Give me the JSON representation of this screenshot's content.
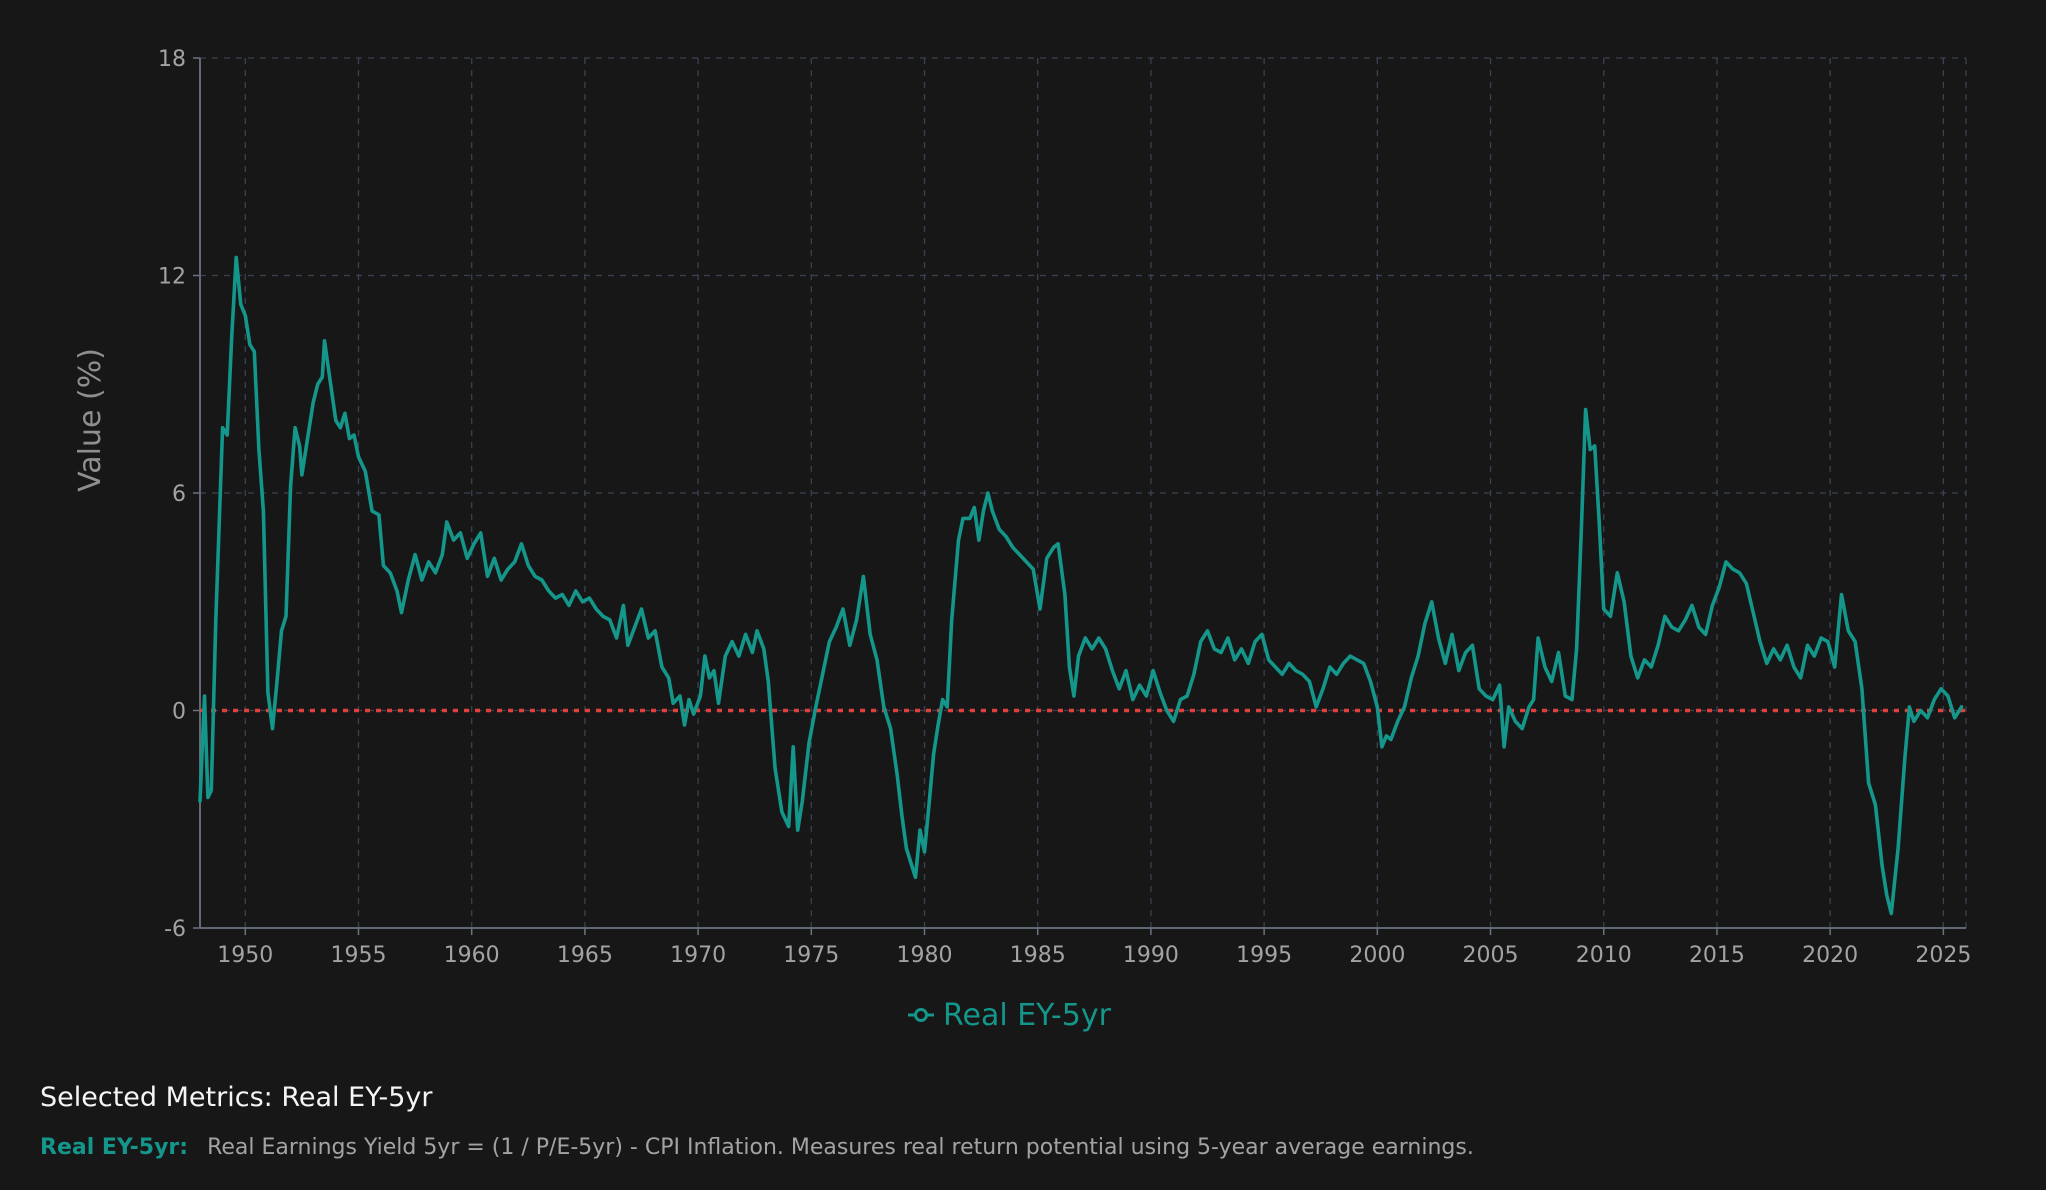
{
  "colors": {
    "background": "#171717",
    "series": "#14968a",
    "reference_line": "#e0403a",
    "grid": "#3a4150",
    "axis": "#6b7280",
    "tick_text": "#a3a3a3"
  },
  "chart_data": {
    "type": "line",
    "title": "",
    "xlabel": "",
    "ylabel": "Value (%)",
    "xlim": [
      1948,
      2026
    ],
    "ylim": [
      -6,
      18
    ],
    "x_ticks": [
      1950,
      1955,
      1960,
      1965,
      1970,
      1975,
      1980,
      1985,
      1990,
      1995,
      2000,
      2005,
      2010,
      2015,
      2020,
      2025
    ],
    "y_ticks": [
      -6,
      0,
      6,
      12,
      18
    ],
    "grid": true,
    "grid_style": "dashed",
    "legend": {
      "placement": "bottom-center",
      "entries": [
        "Real EY-5yr"
      ]
    },
    "reference_lines": [
      {
        "axis": "y",
        "value": 0,
        "style": "dotted",
        "color": "#e0403a"
      }
    ],
    "series": [
      {
        "name": "Real EY-5yr",
        "color": "#14968a",
        "points": [
          [
            1948.0,
            -2.5
          ],
          [
            1948.2,
            0.4
          ],
          [
            1948.35,
            -2.4
          ],
          [
            1948.5,
            -2.2
          ],
          [
            1948.7,
            2.5
          ],
          [
            1949.0,
            7.8
          ],
          [
            1949.2,
            7.6
          ],
          [
            1949.4,
            10.3
          ],
          [
            1949.6,
            12.5
          ],
          [
            1949.8,
            11.2
          ],
          [
            1950.0,
            10.9
          ],
          [
            1950.2,
            10.1
          ],
          [
            1950.4,
            9.9
          ],
          [
            1950.6,
            7.2
          ],
          [
            1950.8,
            5.5
          ],
          [
            1951.0,
            0.5
          ],
          [
            1951.2,
            -0.5
          ],
          [
            1951.4,
            0.8
          ],
          [
            1951.6,
            2.2
          ],
          [
            1951.8,
            2.6
          ],
          [
            1952.0,
            6.2
          ],
          [
            1952.2,
            7.8
          ],
          [
            1952.4,
            7.3
          ],
          [
            1952.5,
            6.5
          ],
          [
            1952.7,
            7.3
          ],
          [
            1953.0,
            8.5
          ],
          [
            1953.2,
            9.0
          ],
          [
            1953.4,
            9.2
          ],
          [
            1953.5,
            10.2
          ],
          [
            1953.7,
            9.3
          ],
          [
            1954.0,
            8.0
          ],
          [
            1954.2,
            7.8
          ],
          [
            1954.4,
            8.2
          ],
          [
            1954.6,
            7.5
          ],
          [
            1954.8,
            7.6
          ],
          [
            1955.0,
            7.0
          ],
          [
            1955.3,
            6.6
          ],
          [
            1955.6,
            5.5
          ],
          [
            1955.9,
            5.4
          ],
          [
            1956.1,
            4.0
          ],
          [
            1956.4,
            3.8
          ],
          [
            1956.7,
            3.3
          ],
          [
            1956.9,
            2.7
          ],
          [
            1957.2,
            3.6
          ],
          [
            1957.5,
            4.3
          ],
          [
            1957.8,
            3.6
          ],
          [
            1958.1,
            4.1
          ],
          [
            1958.4,
            3.8
          ],
          [
            1958.7,
            4.3
          ],
          [
            1958.9,
            5.2
          ],
          [
            1959.2,
            4.7
          ],
          [
            1959.5,
            4.9
          ],
          [
            1959.8,
            4.2
          ],
          [
            1960.1,
            4.6
          ],
          [
            1960.4,
            4.9
          ],
          [
            1960.7,
            3.7
          ],
          [
            1961.0,
            4.2
          ],
          [
            1961.3,
            3.6
          ],
          [
            1961.6,
            3.9
          ],
          [
            1961.9,
            4.1
          ],
          [
            1962.2,
            4.6
          ],
          [
            1962.5,
            4.0
          ],
          [
            1962.8,
            3.7
          ],
          [
            1963.1,
            3.6
          ],
          [
            1963.4,
            3.3
          ],
          [
            1963.7,
            3.1
          ],
          [
            1964.0,
            3.2
          ],
          [
            1964.3,
            2.9
          ],
          [
            1964.6,
            3.3
          ],
          [
            1964.9,
            3.0
          ],
          [
            1965.2,
            3.1
          ],
          [
            1965.5,
            2.8
          ],
          [
            1965.8,
            2.6
          ],
          [
            1966.1,
            2.5
          ],
          [
            1966.4,
            2.0
          ],
          [
            1966.7,
            2.9
          ],
          [
            1966.9,
            1.8
          ],
          [
            1967.2,
            2.3
          ],
          [
            1967.5,
            2.8
          ],
          [
            1967.8,
            2.0
          ],
          [
            1968.1,
            2.2
          ],
          [
            1968.4,
            1.2
          ],
          [
            1968.7,
            0.9
          ],
          [
            1968.9,
            0.2
          ],
          [
            1969.2,
            0.4
          ],
          [
            1969.4,
            -0.4
          ],
          [
            1969.6,
            0.3
          ],
          [
            1969.8,
            -0.1
          ],
          [
            1970.1,
            0.4
          ],
          [
            1970.3,
            1.5
          ],
          [
            1970.5,
            0.9
          ],
          [
            1970.7,
            1.1
          ],
          [
            1970.9,
            0.2
          ],
          [
            1971.2,
            1.5
          ],
          [
            1971.5,
            1.9
          ],
          [
            1971.8,
            1.5
          ],
          [
            1972.1,
            2.1
          ],
          [
            1972.4,
            1.6
          ],
          [
            1972.6,
            2.2
          ],
          [
            1972.9,
            1.7
          ],
          [
            1973.1,
            0.8
          ],
          [
            1973.4,
            -1.6
          ],
          [
            1973.7,
            -2.8
          ],
          [
            1974.0,
            -3.2
          ],
          [
            1974.2,
            -1.0
          ],
          [
            1974.4,
            -3.3
          ],
          [
            1974.6,
            -2.5
          ],
          [
            1974.9,
            -0.9
          ],
          [
            1975.2,
            0.1
          ],
          [
            1975.5,
            1.0
          ],
          [
            1975.8,
            1.9
          ],
          [
            1976.1,
            2.3
          ],
          [
            1976.4,
            2.8
          ],
          [
            1976.7,
            1.8
          ],
          [
            1977.0,
            2.5
          ],
          [
            1977.3,
            3.7
          ],
          [
            1977.6,
            2.1
          ],
          [
            1977.9,
            1.4
          ],
          [
            1978.2,
            0.1
          ],
          [
            1978.5,
            -0.5
          ],
          [
            1978.8,
            -1.8
          ],
          [
            1979.0,
            -2.9
          ],
          [
            1979.2,
            -3.8
          ],
          [
            1979.4,
            -4.2
          ],
          [
            1979.6,
            -4.6
          ],
          [
            1979.8,
            -3.3
          ],
          [
            1980.0,
            -3.9
          ],
          [
            1980.2,
            -2.6
          ],
          [
            1980.4,
            -1.2
          ],
          [
            1980.6,
            -0.4
          ],
          [
            1980.8,
            0.3
          ],
          [
            1981.0,
            0.1
          ],
          [
            1981.2,
            2.5
          ],
          [
            1981.5,
            4.7
          ],
          [
            1981.7,
            5.3
          ],
          [
            1982.0,
            5.3
          ],
          [
            1982.2,
            5.6
          ],
          [
            1982.4,
            4.7
          ],
          [
            1982.6,
            5.5
          ],
          [
            1982.8,
            6.0
          ],
          [
            1983.0,
            5.5
          ],
          [
            1983.3,
            5.0
          ],
          [
            1983.6,
            4.8
          ],
          [
            1983.9,
            4.5
          ],
          [
            1984.2,
            4.3
          ],
          [
            1984.5,
            4.1
          ],
          [
            1984.8,
            3.9
          ],
          [
            1985.1,
            2.8
          ],
          [
            1985.4,
            4.2
          ],
          [
            1985.7,
            4.5
          ],
          [
            1985.9,
            4.6
          ],
          [
            1986.2,
            3.2
          ],
          [
            1986.4,
            1.2
          ],
          [
            1986.6,
            0.4
          ],
          [
            1986.8,
            1.5
          ],
          [
            1987.1,
            2.0
          ],
          [
            1987.4,
            1.7
          ],
          [
            1987.7,
            2.0
          ],
          [
            1988.0,
            1.7
          ],
          [
            1988.3,
            1.1
          ],
          [
            1988.6,
            0.6
          ],
          [
            1988.9,
            1.1
          ],
          [
            1989.2,
            0.3
          ],
          [
            1989.5,
            0.7
          ],
          [
            1989.8,
            0.4
          ],
          [
            1990.1,
            1.1
          ],
          [
            1990.4,
            0.5
          ],
          [
            1990.7,
            0.0
          ],
          [
            1991.0,
            -0.3
          ],
          [
            1991.3,
            0.3
          ],
          [
            1991.6,
            0.4
          ],
          [
            1991.9,
            1.0
          ],
          [
            1992.2,
            1.9
          ],
          [
            1992.5,
            2.2
          ],
          [
            1992.8,
            1.7
          ],
          [
            1993.1,
            1.6
          ],
          [
            1993.4,
            2.0
          ],
          [
            1993.7,
            1.4
          ],
          [
            1994.0,
            1.7
          ],
          [
            1994.3,
            1.3
          ],
          [
            1994.6,
            1.9
          ],
          [
            1994.9,
            2.1
          ],
          [
            1995.2,
            1.4
          ],
          [
            1995.5,
            1.2
          ],
          [
            1995.8,
            1.0
          ],
          [
            1996.1,
            1.3
          ],
          [
            1996.4,
            1.1
          ],
          [
            1996.7,
            1.0
          ],
          [
            1997.0,
            0.8
          ],
          [
            1997.3,
            0.1
          ],
          [
            1997.6,
            0.6
          ],
          [
            1997.9,
            1.2
          ],
          [
            1998.2,
            1.0
          ],
          [
            1998.5,
            1.3
          ],
          [
            1998.8,
            1.5
          ],
          [
            1999.1,
            1.4
          ],
          [
            1999.4,
            1.3
          ],
          [
            1999.7,
            0.8
          ],
          [
            2000.0,
            0.1
          ],
          [
            2000.2,
            -1.0
          ],
          [
            2000.4,
            -0.7
          ],
          [
            2000.6,
            -0.8
          ],
          [
            2000.9,
            -0.3
          ],
          [
            2001.2,
            0.1
          ],
          [
            2001.5,
            0.9
          ],
          [
            2001.8,
            1.5
          ],
          [
            2002.1,
            2.4
          ],
          [
            2002.4,
            3.0
          ],
          [
            2002.7,
            2.0
          ],
          [
            2003.0,
            1.3
          ],
          [
            2003.3,
            2.1
          ],
          [
            2003.6,
            1.1
          ],
          [
            2003.9,
            1.6
          ],
          [
            2004.2,
            1.8
          ],
          [
            2004.5,
            0.6
          ],
          [
            2004.8,
            0.4
          ],
          [
            2005.1,
            0.3
          ],
          [
            2005.4,
            0.7
          ],
          [
            2005.6,
            -1.0
          ],
          [
            2005.8,
            0.1
          ],
          [
            2006.1,
            -0.3
          ],
          [
            2006.4,
            -0.5
          ],
          [
            2006.7,
            0.1
          ],
          [
            2006.9,
            0.3
          ],
          [
            2007.1,
            2.0
          ],
          [
            2007.4,
            1.2
          ],
          [
            2007.7,
            0.8
          ],
          [
            2008.0,
            1.6
          ],
          [
            2008.3,
            0.4
          ],
          [
            2008.6,
            0.3
          ],
          [
            2008.8,
            1.7
          ],
          [
            2009.0,
            4.8
          ],
          [
            2009.2,
            8.3
          ],
          [
            2009.4,
            7.2
          ],
          [
            2009.6,
            7.3
          ],
          [
            2009.8,
            5.2
          ],
          [
            2010.0,
            2.8
          ],
          [
            2010.3,
            2.6
          ],
          [
            2010.6,
            3.8
          ],
          [
            2010.9,
            3.0
          ],
          [
            2011.2,
            1.5
          ],
          [
            2011.5,
            0.9
          ],
          [
            2011.8,
            1.4
          ],
          [
            2012.1,
            1.2
          ],
          [
            2012.4,
            1.8
          ],
          [
            2012.7,
            2.6
          ],
          [
            2013.0,
            2.3
          ],
          [
            2013.3,
            2.2
          ],
          [
            2013.6,
            2.5
          ],
          [
            2013.9,
            2.9
          ],
          [
            2014.2,
            2.3
          ],
          [
            2014.5,
            2.1
          ],
          [
            2014.8,
            2.9
          ],
          [
            2015.1,
            3.4
          ],
          [
            2015.4,
            4.1
          ],
          [
            2015.7,
            3.9
          ],
          [
            2016.0,
            3.8
          ],
          [
            2016.3,
            3.5
          ],
          [
            2016.6,
            2.7
          ],
          [
            2016.9,
            1.9
          ],
          [
            2017.2,
            1.3
          ],
          [
            2017.5,
            1.7
          ],
          [
            2017.8,
            1.4
          ],
          [
            2018.1,
            1.8
          ],
          [
            2018.4,
            1.2
          ],
          [
            2018.7,
            0.9
          ],
          [
            2019.0,
            1.8
          ],
          [
            2019.3,
            1.5
          ],
          [
            2019.6,
            2.0
          ],
          [
            2019.9,
            1.9
          ],
          [
            2020.2,
            1.2
          ],
          [
            2020.5,
            3.2
          ],
          [
            2020.8,
            2.2
          ],
          [
            2021.1,
            1.9
          ],
          [
            2021.4,
            0.6
          ],
          [
            2021.7,
            -2.0
          ],
          [
            2022.0,
            -2.6
          ],
          [
            2022.3,
            -4.3
          ],
          [
            2022.5,
            -5.1
          ],
          [
            2022.7,
            -5.6
          ],
          [
            2023.0,
            -3.8
          ],
          [
            2023.3,
            -1.3
          ],
          [
            2023.5,
            0.1
          ],
          [
            2023.7,
            -0.3
          ],
          [
            2024.0,
            0.0
          ],
          [
            2024.3,
            -0.2
          ],
          [
            2024.6,
            0.3
          ],
          [
            2024.9,
            0.6
          ],
          [
            2025.2,
            0.4
          ],
          [
            2025.5,
            -0.2
          ],
          [
            2025.8,
            0.1
          ]
        ]
      }
    ]
  },
  "metrics": {
    "heading": "Selected Metrics: Real EY-5yr",
    "items": [
      {
        "name": "Real EY-5yr:",
        "description": "Real Earnings Yield 5yr = (1 / P/E-5yr) - CPI Inflation. Measures real return potential using 5-year average earnings."
      }
    ]
  }
}
